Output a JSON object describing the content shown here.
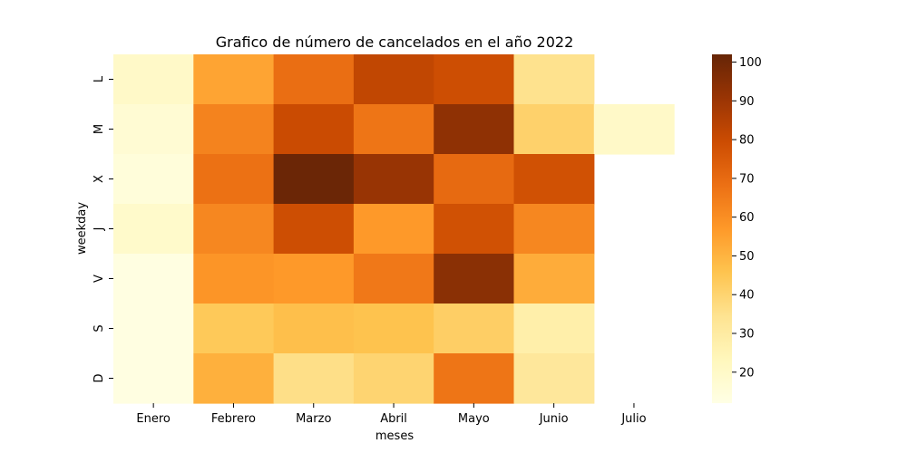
{
  "chart_data": {
    "type": "heatmap",
    "title": "Grafico de número de cancelados en el año 2022",
    "xlabel": "meses",
    "ylabel": "weekday",
    "x_categories": [
      "Enero",
      "Febrero",
      "Marzo",
      "Abril",
      "Mayo",
      "Junio",
      "Julio"
    ],
    "y_categories": [
      "L",
      "M",
      "X",
      "J",
      "V",
      "S",
      "D"
    ],
    "values": [
      [
        20,
        54,
        69,
        82,
        79,
        35,
        null
      ],
      [
        17,
        63,
        80,
        67,
        93,
        41,
        20
      ],
      [
        15,
        68,
        101,
        91,
        70,
        78,
        null
      ],
      [
        19,
        62,
        79,
        57,
        78,
        62,
        null
      ],
      [
        13,
        58,
        57,
        66,
        94,
        52,
        null
      ],
      [
        13,
        44,
        47,
        46,
        42,
        28,
        null
      ],
      [
        13,
        51,
        36,
        40,
        67,
        32,
        null
      ]
    ],
    "colorbar": {
      "min": 12,
      "max": 102,
      "ticks": [
        20,
        30,
        40,
        50,
        60,
        70,
        80,
        90,
        100
      ],
      "colormap": "YlOrBr"
    },
    "missing_color": "#ffffff"
  }
}
